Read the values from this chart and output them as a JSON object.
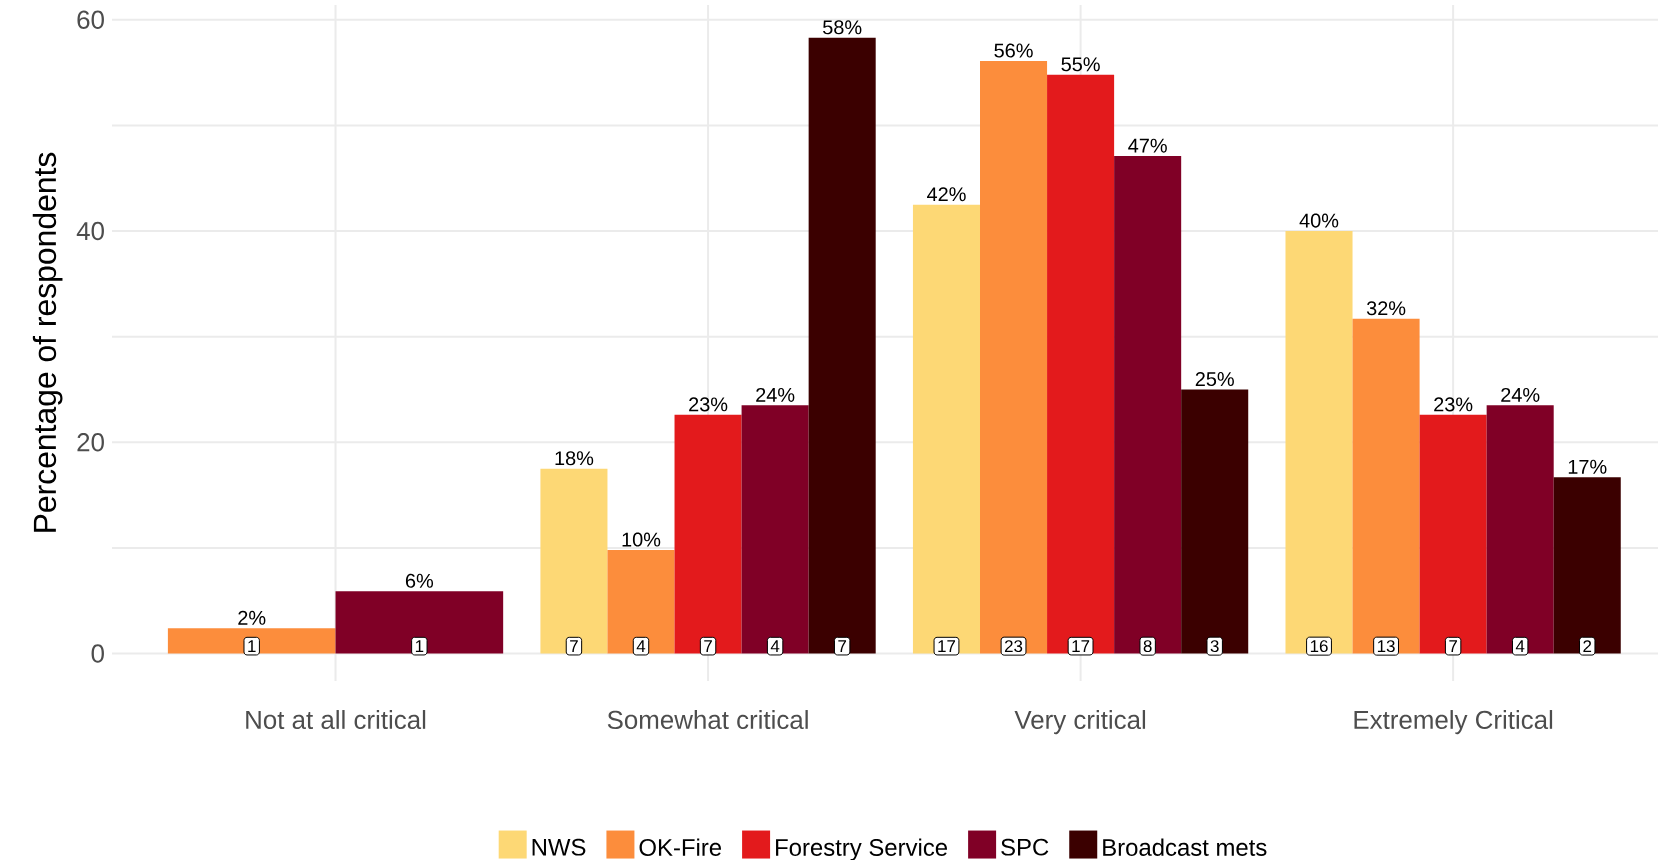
{
  "chart_data": {
    "type": "bar",
    "ylabel": "Percentage of respondents",
    "categories": [
      "Not at all critical",
      "Somewhat critical",
      "Very critical",
      "Extremely Critical"
    ],
    "series": [
      {
        "name": "NWS",
        "color": "#fdd875",
        "values": [
          null,
          17.5,
          42.5,
          40
        ],
        "value_labels": [
          null,
          "18%",
          "42%",
          "40%"
        ]
      },
      {
        "name": "OK-Fire",
        "color": "#fc8d3c",
        "values": [
          2.4,
          9.8,
          56.1,
          31.7
        ],
        "value_labels": [
          "2%",
          "10%",
          "56%",
          "32%"
        ]
      },
      {
        "name": "Forestry Service",
        "color": "#e31a1c",
        "values": [
          null,
          22.6,
          54.8,
          22.6
        ],
        "value_labels": [
          null,
          "23%",
          "55%",
          "23%"
        ]
      },
      {
        "name": "SPC",
        "color": "#800026",
        "values": [
          5.9,
          23.5,
          47.1,
          23.5
        ],
        "value_labels": [
          "6%",
          "24%",
          "47%",
          "24%"
        ]
      },
      {
        "name": "Broadcast mets",
        "color": "#3b0000",
        "values": [
          null,
          58.3,
          25,
          16.7
        ],
        "value_labels": [
          null,
          "58%",
          "25%",
          "17%"
        ]
      }
    ],
    "ylim": [
      -2.6,
      61.4
    ],
    "yticks": [
      0,
      {
        "value": 10,
        "label": null
      },
      20,
      {
        "value": 30,
        "label": null
      },
      40,
      {
        "value": 50,
        "label": null
      },
      60
    ],
    "grid": true,
    "legend": "bottom",
    "annotations": [
      "1",
      "1",
      "7",
      "4",
      "7",
      "4",
      "7",
      "17",
      "23",
      "17",
      "8",
      "3",
      "16",
      "13",
      "7",
      "4",
      "2"
    ]
  }
}
